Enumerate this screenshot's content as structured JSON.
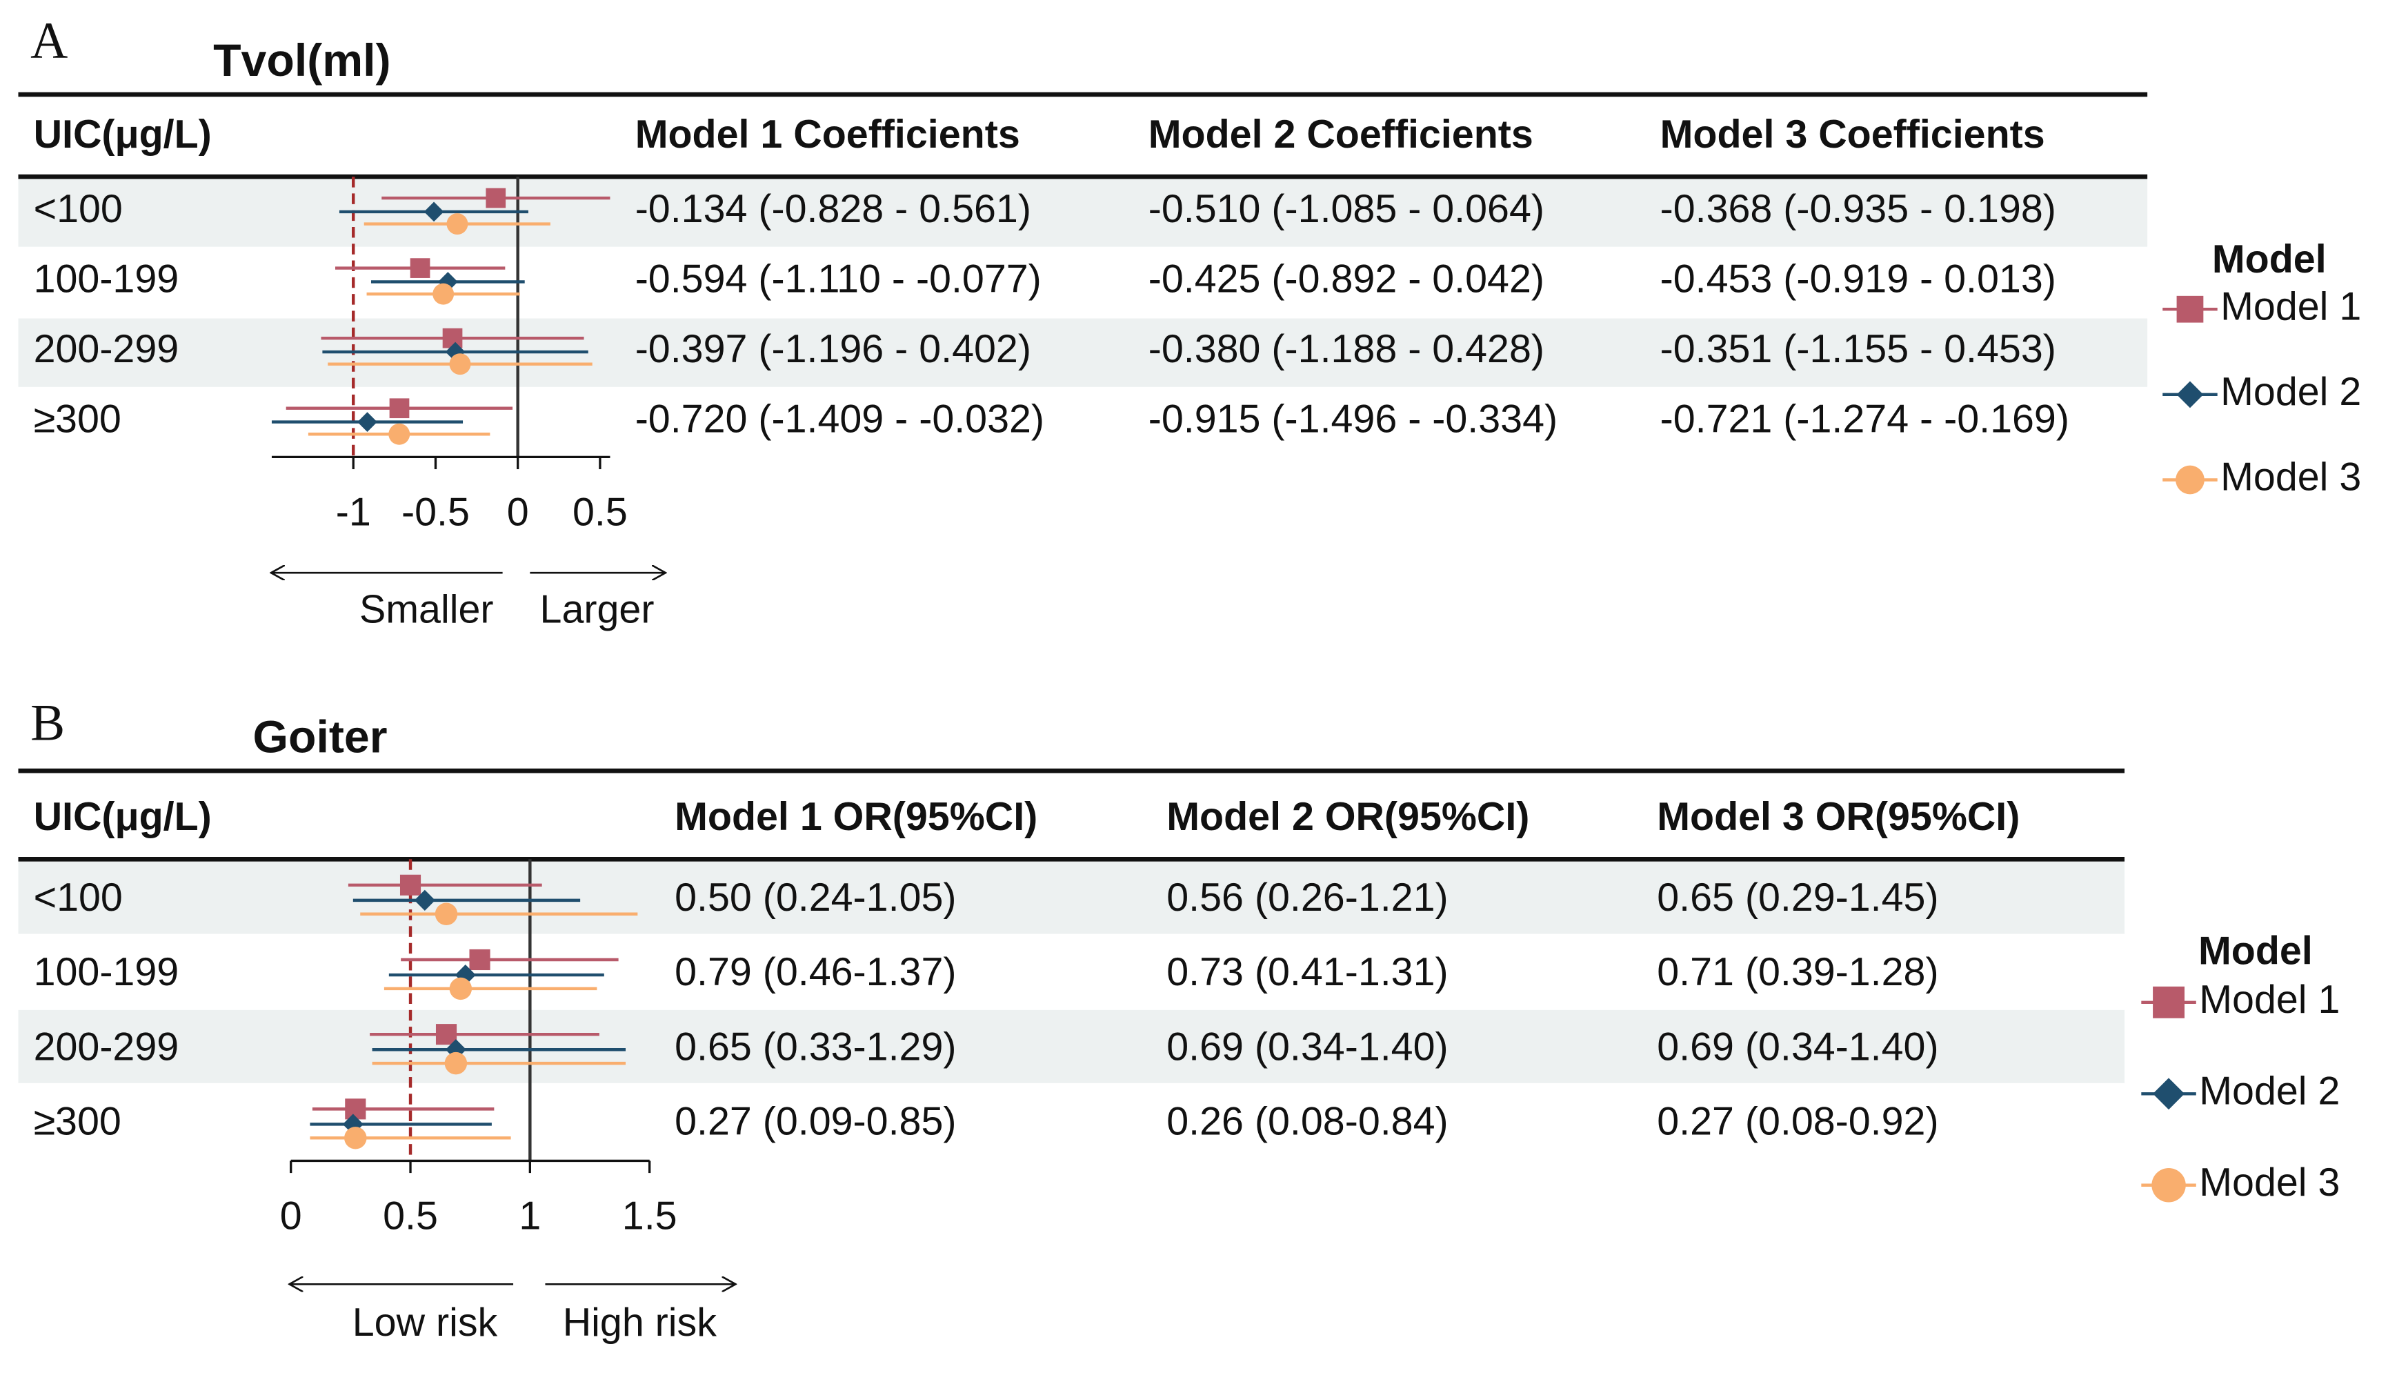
{
  "chart_data": [
    {
      "type": "forest",
      "panel": "A",
      "title": "Tvol(ml)",
      "columns": [
        "UIC(μg/L)",
        "Model 1 Coefficients",
        "Model 2 Coefficients",
        "Model 3 Coefficients"
      ],
      "categories": [
        "<100",
        "100-199",
        "200-299",
        "≥300"
      ],
      "series": [
        {
          "name": "Model 1",
          "color": "#b85a6a",
          "marker": "square",
          "values": [
            -0.134,
            -0.594,
            -0.397,
            -0.72
          ],
          "lower": [
            -0.828,
            -1.11,
            -1.196,
            -1.409
          ],
          "upper": [
            0.561,
            -0.077,
            0.402,
            -0.032
          ],
          "value_labels": [
            "-0.134 (-0.828 - 0.561)",
            "-0.594 (-1.110 - -0.077)",
            "-0.397 (-1.196 - 0.402)",
            "-0.720 (-1.409 - -0.032)"
          ]
        },
        {
          "name": "Model 2",
          "color": "#1f4e6e",
          "marker": "diamond",
          "values": [
            -0.51,
            -0.425,
            -0.38,
            -0.915
          ],
          "lower": [
            -1.085,
            -0.892,
            -1.188,
            -1.496
          ],
          "upper": [
            0.064,
            0.042,
            0.428,
            -0.334
          ],
          "value_labels": [
            "-0.510 (-1.085 - 0.064)",
            "-0.425 (-0.892 - 0.042)",
            "-0.380 (-1.188 - 0.428)",
            "-0.915 (-1.496 - -0.334)"
          ]
        },
        {
          "name": "Model 3",
          "color": "#f9ae6e",
          "marker": "circle",
          "values": [
            -0.368,
            -0.453,
            -0.351,
            -0.721
          ],
          "lower": [
            -0.935,
            -0.919,
            -1.155,
            -1.274
          ],
          "upper": [
            0.198,
            0.013,
            0.453,
            -0.169
          ],
          "value_labels": [
            "-0.368 (-0.935 - 0.198)",
            "-0.453 (-0.919 - 0.013)",
            "-0.351 (-1.155 - 0.453)",
            "-0.721 (-1.274 - -0.169)"
          ]
        }
      ],
      "xlim": [
        -1.496,
        0.561
      ],
      "xticks": [
        -1,
        -0.5,
        0,
        0.5
      ],
      "reference_lines": [
        {
          "value": 0,
          "style": "solid",
          "color": "#333333"
        },
        {
          "value": -1,
          "style": "dashed",
          "color": "#a52a2a"
        }
      ],
      "direction_labels": [
        "Smaller",
        "Larger"
      ],
      "legend_title": "Model",
      "legend": "right"
    },
    {
      "type": "forest",
      "panel": "B",
      "title": "Goiter",
      "columns": [
        "UIC(μg/L)",
        "Model 1 OR(95%CI)",
        "Model 2 OR(95%CI)",
        "Model 3 OR(95%CI)"
      ],
      "categories": [
        "<100",
        "100-199",
        "200-299",
        "≥300"
      ],
      "series": [
        {
          "name": "Model 1",
          "color": "#b85a6a",
          "marker": "square",
          "values": [
            0.5,
            0.79,
            0.65,
            0.27
          ],
          "lower": [
            0.24,
            0.46,
            0.33,
            0.09
          ],
          "upper": [
            1.05,
            1.37,
            1.29,
            0.85
          ],
          "value_labels": [
            "0.50 (0.24-1.05)",
            "0.79 (0.46-1.37)",
            "0.65 (0.33-1.29)",
            "0.27 (0.09-0.85)"
          ]
        },
        {
          "name": "Model 2",
          "color": "#1f4e6e",
          "marker": "diamond",
          "values": [
            0.56,
            0.73,
            0.69,
            0.26
          ],
          "lower": [
            0.26,
            0.41,
            0.34,
            0.08
          ],
          "upper": [
            1.21,
            1.31,
            1.4,
            0.84
          ],
          "value_labels": [
            "0.56 (0.26-1.21)",
            "0.73 (0.41-1.31)",
            "0.69 (0.34-1.40)",
            "0.26 (0.08-0.84)"
          ]
        },
        {
          "name": "Model 3",
          "color": "#f9ae6e",
          "marker": "circle",
          "values": [
            0.65,
            0.71,
            0.69,
            0.27
          ],
          "lower": [
            0.29,
            0.39,
            0.34,
            0.08
          ],
          "upper": [
            1.45,
            1.28,
            1.4,
            0.92
          ],
          "value_labels": [
            "0.65 (0.29-1.45)",
            "0.71 (0.39-1.28)",
            "0.69 (0.34-1.40)",
            "0.27 (0.08-0.92)"
          ]
        }
      ],
      "xlim": [
        0,
        1.5
      ],
      "xticks": [
        0,
        0.5,
        1,
        1.5
      ],
      "reference_lines": [
        {
          "value": 1,
          "style": "solid",
          "color": "#333333"
        },
        {
          "value": 0.5,
          "style": "dashed",
          "color": "#a52a2a"
        }
      ],
      "direction_labels": [
        "Low risk",
        "High risk"
      ],
      "legend_title": "Model",
      "legend": "right"
    }
  ]
}
